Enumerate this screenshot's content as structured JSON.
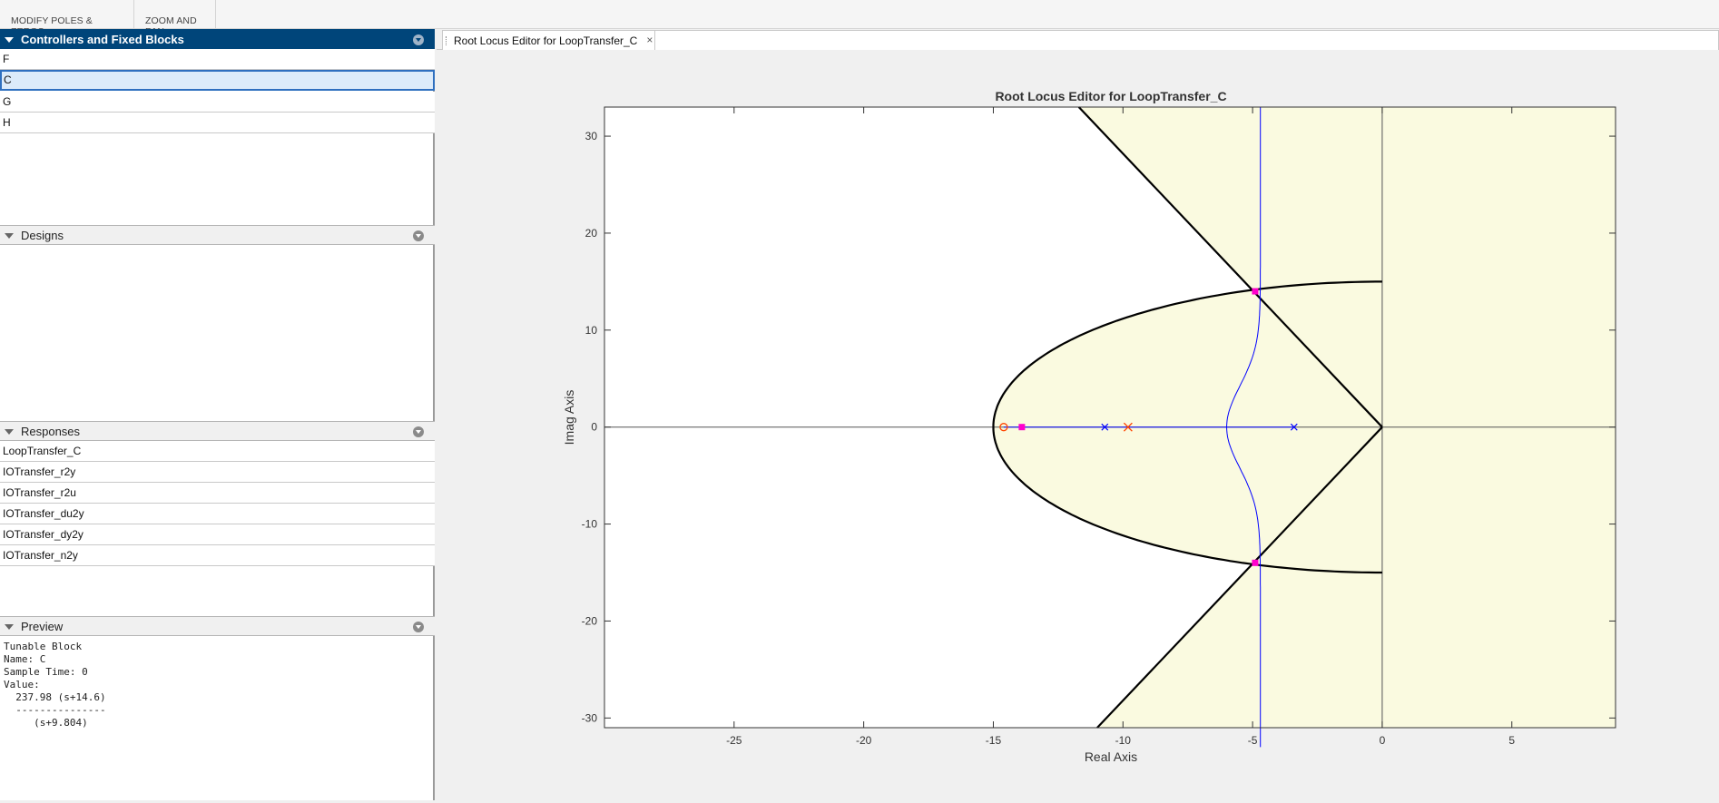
{
  "toolstrip": {
    "tabs": [
      "MODIFY POLES & ZEROS",
      "ZOOM AND PAN"
    ]
  },
  "sections": {
    "controllers": {
      "title": "Controllers and Fixed Blocks",
      "items": [
        "F",
        "C",
        "G",
        "H"
      ],
      "selected": "C"
    },
    "designs": {
      "title": "Designs",
      "items": []
    },
    "responses": {
      "title": "Responses",
      "items": [
        "LoopTransfer_C",
        "IOTransfer_r2y",
        "IOTransfer_r2u",
        "IOTransfer_du2y",
        "IOTransfer_dy2y",
        "IOTransfer_n2y"
      ]
    },
    "preview": {
      "title": "Preview",
      "lines": [
        "Tunable Block",
        "Name: C",
        "Sample Time: 0",
        "Value:",
        "  237.98 (s+14.6)",
        "  ---------------",
        "     (s+9.804)"
      ]
    }
  },
  "document": {
    "tab_label": "Root Locus Editor for LoopTransfer_C",
    "close_glyph": "×"
  },
  "chart_data": {
    "type": "scatter",
    "title": "Root Locus Editor for LoopTransfer_C",
    "xlabel": "Real Axis",
    "ylabel": "Imag Axis",
    "xlim": [
      -30,
      9
    ],
    "ylim": [
      -31,
      33
    ],
    "xticks": [
      -25,
      -20,
      -15,
      -10,
      -5,
      0,
      5
    ],
    "yticks": [
      -30,
      -20,
      -10,
      0,
      10,
      20,
      30
    ],
    "grid": false,
    "region_color": "#fafae0",
    "open_loop_poles": [
      [
        -10.7,
        0
      ],
      [
        -3.4,
        0
      ]
    ],
    "controller_pole": [
      -9.804,
      0
    ],
    "controller_zero": [
      -14.6,
      0
    ],
    "closed_loop_poles": [
      [
        -13.9,
        0
      ],
      [
        -4.9,
        14
      ],
      [
        -4.9,
        -14
      ]
    ],
    "locus_color": "#0000ff",
    "controller_color": "#ff4500",
    "closed_loop_color": "#ff00cc",
    "constraint": {
      "settling_boundary": -15,
      "damping_line_point": [
        -5,
        14.1
      ],
      "ellipse_real_extent": -15,
      "ellipse_imag_extent": 15
    }
  }
}
